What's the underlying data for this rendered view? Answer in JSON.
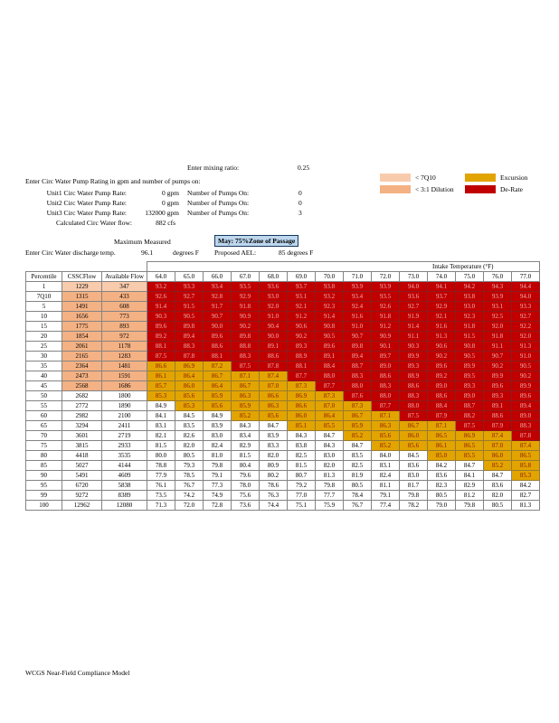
{
  "app": {
    "footer": "WCGS Near-Field Compliance Model"
  },
  "inputs": {
    "mixing_label": "Enter mixing ratio:",
    "mixing_value": "0.25",
    "heading": "Enter Circ Water Pump Rating in gpm and number of pumps on:",
    "pump_rows": [
      {
        "label": "Unit1 Circ Water Pump Rate:",
        "rate": "0 gpm",
        "pumps_label": "Number of Pumps On:",
        "pumps": "0"
      },
      {
        "label": "Unit2 Circ Water Pump Rate:",
        "rate": "0 gpm",
        "pumps_label": "Number of Pumps On:",
        "pumps": "0"
      },
      {
        "label": "Unit3 Circ Water Pump Rate:",
        "rate": "132000 gpm",
        "pumps_label": "Number of Pumps On:",
        "pumps": "3"
      }
    ],
    "calc_flow_label": "Calculated Circ Water flow:",
    "calc_flow_value": "882 cfs",
    "max_measured_label": "Maximum Measured",
    "discharge_label": "Enter Circ Water discharge temp.",
    "discharge_value": "96.1",
    "discharge_unit": "degrees F",
    "month_banner": "May: 75%Zone of Passage",
    "ael_label": "Proposed AEL:",
    "ael_value": "85 degrees F"
  },
  "legend": {
    "items": [
      {
        "label": "< 7Q10",
        "color": "#F8CBAD"
      },
      {
        "label": "< 3:1 Dilution",
        "color": "#F4B183"
      },
      {
        "label": "Excursion",
        "color": "#E2A400"
      },
      {
        "label": "De-Rate",
        "color": "#C00000"
      }
    ]
  },
  "table": {
    "banner": "Intake Temperature (°F)",
    "col_headers": [
      "Percentile",
      "CSSCFlow",
      "Available Flow"
    ],
    "temps": [
      "64.0",
      "65.0",
      "66.0",
      "67.0",
      "68.0",
      "69.0",
      "70.0",
      "71.0",
      "72.0",
      "73.0",
      "74.0",
      "75.0",
      "76.0",
      "77.0"
    ],
    "thresholds": {
      "excursion": 85.0,
      "derate": 87.5
    },
    "rows": [
      {
        "percentile": "1",
        "csscflow": "1229",
        "available": "347",
        "flag": "lt7q10",
        "values": [
          93.2,
          93.3,
          93.4,
          93.5,
          93.6,
          93.7,
          93.8,
          93.9,
          93.9,
          94.0,
          94.1,
          94.2,
          94.3,
          94.4
        ]
      },
      {
        "percentile": "7Q10",
        "csscflow": "1315",
        "available": "433",
        "flag": "lt3to1",
        "values": [
          92.6,
          92.7,
          92.8,
          92.9,
          93.0,
          93.1,
          93.2,
          93.4,
          93.5,
          93.6,
          93.7,
          93.8,
          93.9,
          94.0
        ]
      },
      {
        "percentile": "5",
        "csscflow": "1491",
        "available": "608",
        "flag": "lt3to1",
        "values": [
          91.4,
          91.5,
          91.7,
          91.8,
          92.0,
          92.1,
          92.3,
          92.4,
          92.6,
          92.7,
          92.9,
          93.0,
          93.1,
          93.3
        ]
      },
      {
        "percentile": "10",
        "csscflow": "1656",
        "available": "773",
        "flag": "lt3to1",
        "values": [
          90.3,
          90.5,
          90.7,
          90.9,
          91.0,
          91.2,
          91.4,
          91.6,
          91.8,
          91.9,
          92.1,
          92.3,
          92.5,
          92.7
        ]
      },
      {
        "percentile": "15",
        "csscflow": "1775",
        "available": "893",
        "flag": "lt3to1",
        "values": [
          89.6,
          89.8,
          90.0,
          90.2,
          90.4,
          90.6,
          90.8,
          91.0,
          91.2,
          91.4,
          91.6,
          91.8,
          92.0,
          92.2
        ]
      },
      {
        "percentile": "20",
        "csscflow": "1854",
        "available": "972",
        "flag": "lt3to1",
        "values": [
          89.2,
          89.4,
          89.6,
          89.8,
          90.0,
          90.2,
          90.5,
          90.7,
          90.9,
          91.1,
          91.3,
          91.5,
          91.8,
          92.0
        ]
      },
      {
        "percentile": "25",
        "csscflow": "2061",
        "available": "1178",
        "flag": "lt3to1",
        "values": [
          88.1,
          88.3,
          88.6,
          88.8,
          89.1,
          89.3,
          89.6,
          89.8,
          90.1,
          90.3,
          90.6,
          90.8,
          91.1,
          91.3
        ]
      },
      {
        "percentile": "30",
        "csscflow": "2165",
        "available": "1283",
        "flag": "lt3to1",
        "values": [
          87.5,
          87.8,
          88.1,
          88.3,
          88.6,
          88.9,
          89.1,
          89.4,
          89.7,
          89.9,
          90.2,
          90.5,
          90.7,
          91.0
        ]
      },
      {
        "percentile": "35",
        "csscflow": "2364",
        "available": "1481",
        "flag": "lt3to1",
        "values": [
          86.6,
          86.9,
          87.2,
          87.5,
          87.8,
          88.1,
          88.4,
          88.7,
          89.0,
          89.3,
          89.6,
          89.9,
          90.2,
          90.5
        ]
      },
      {
        "percentile": "40",
        "csscflow": "2473",
        "available": "1591",
        "flag": "lt3to1",
        "values": [
          86.1,
          86.4,
          86.7,
          87.1,
          87.4,
          87.7,
          88.0,
          88.3,
          88.6,
          88.9,
          89.2,
          89.5,
          89.9,
          90.2
        ]
      },
      {
        "percentile": "45",
        "csscflow": "2568",
        "available": "1686",
        "flag": "lt3to1",
        "values": [
          85.7,
          86.0,
          86.4,
          86.7,
          87.0,
          87.3,
          87.7,
          88.0,
          88.3,
          88.6,
          89.0,
          89.3,
          89.6,
          89.9
        ]
      },
      {
        "percentile": "50",
        "csscflow": "2682",
        "available": "1800",
        "flag": "",
        "values": [
          85.3,
          85.6,
          85.9,
          86.3,
          86.6,
          86.9,
          87.3,
          87.6,
          88.0,
          88.3,
          88.6,
          89.0,
          89.3,
          89.6
        ]
      },
      {
        "percentile": "55",
        "csscflow": "2772",
        "available": "1890",
        "flag": "",
        "values": [
          84.9,
          85.3,
          85.6,
          85.9,
          86.3,
          86.6,
          87.0,
          87.3,
          87.7,
          88.0,
          88.4,
          88.7,
          89.1,
          89.4
        ]
      },
      {
        "percentile": "60",
        "csscflow": "2982",
        "available": "2100",
        "flag": "",
        "values": [
          84.1,
          84.5,
          84.9,
          85.2,
          85.6,
          86.0,
          86.4,
          86.7,
          87.1,
          87.5,
          87.9,
          88.2,
          88.6,
          89.0
        ]
      },
      {
        "percentile": "65",
        "csscflow": "3294",
        "available": "2411",
        "flag": "",
        "values": [
          83.1,
          83.5,
          83.9,
          84.3,
          84.7,
          85.1,
          85.5,
          85.9,
          86.3,
          86.7,
          87.1,
          87.5,
          87.9,
          88.3
        ]
      },
      {
        "percentile": "70",
        "csscflow": "3601",
        "available": "2719",
        "flag": "",
        "values": [
          82.1,
          82.6,
          83.0,
          83.4,
          83.9,
          84.3,
          84.7,
          85.2,
          85.6,
          86.0,
          86.5,
          86.9,
          87.4,
          87.8
        ]
      },
      {
        "percentile": "75",
        "csscflow": "3815",
        "available": "2933",
        "flag": "",
        "values": [
          81.5,
          82.0,
          82.4,
          82.9,
          83.3,
          83.8,
          84.3,
          84.7,
          85.2,
          85.6,
          86.1,
          86.5,
          87.0,
          87.4
        ]
      },
      {
        "percentile": "80",
        "csscflow": "4418",
        "available": "3535",
        "flag": "",
        "values": [
          80.0,
          80.5,
          81.0,
          81.5,
          82.0,
          82.5,
          83.0,
          83.5,
          84.0,
          84.5,
          85.0,
          85.5,
          86.0,
          86.5
        ]
      },
      {
        "percentile": "85",
        "csscflow": "5027",
        "available": "4144",
        "flag": "",
        "values": [
          78.8,
          79.3,
          79.8,
          80.4,
          80.9,
          81.5,
          82.0,
          82.5,
          83.1,
          83.6,
          84.2,
          84.7,
          85.2,
          85.8
        ]
      },
      {
        "percentile": "90",
        "csscflow": "5491",
        "available": "4609",
        "flag": "",
        "values": [
          77.9,
          78.5,
          79.1,
          79.6,
          80.2,
          80.7,
          81.3,
          81.9,
          82.4,
          83.0,
          83.6,
          84.1,
          84.7,
          85.3
        ]
      },
      {
        "percentile": "95",
        "csscflow": "6720",
        "available": "5838",
        "flag": "",
        "values": [
          76.1,
          76.7,
          77.3,
          78.0,
          78.6,
          79.2,
          79.8,
          80.5,
          81.1,
          81.7,
          82.3,
          82.9,
          83.6,
          84.2
        ]
      },
      {
        "percentile": "99",
        "csscflow": "9272",
        "available": "8389",
        "flag": "",
        "values": [
          73.5,
          74.2,
          74.9,
          75.6,
          76.3,
          77.0,
          77.7,
          78.4,
          79.1,
          79.8,
          80.5,
          81.2,
          82.0,
          82.7
        ]
      },
      {
        "percentile": "100",
        "csscflow": "12962",
        "available": "12080",
        "flag": "",
        "values": [
          71.3,
          72.0,
          72.8,
          73.6,
          74.4,
          75.1,
          75.9,
          76.7,
          77.4,
          78.2,
          79.0,
          79.8,
          80.5,
          81.3
        ]
      }
    ]
  }
}
